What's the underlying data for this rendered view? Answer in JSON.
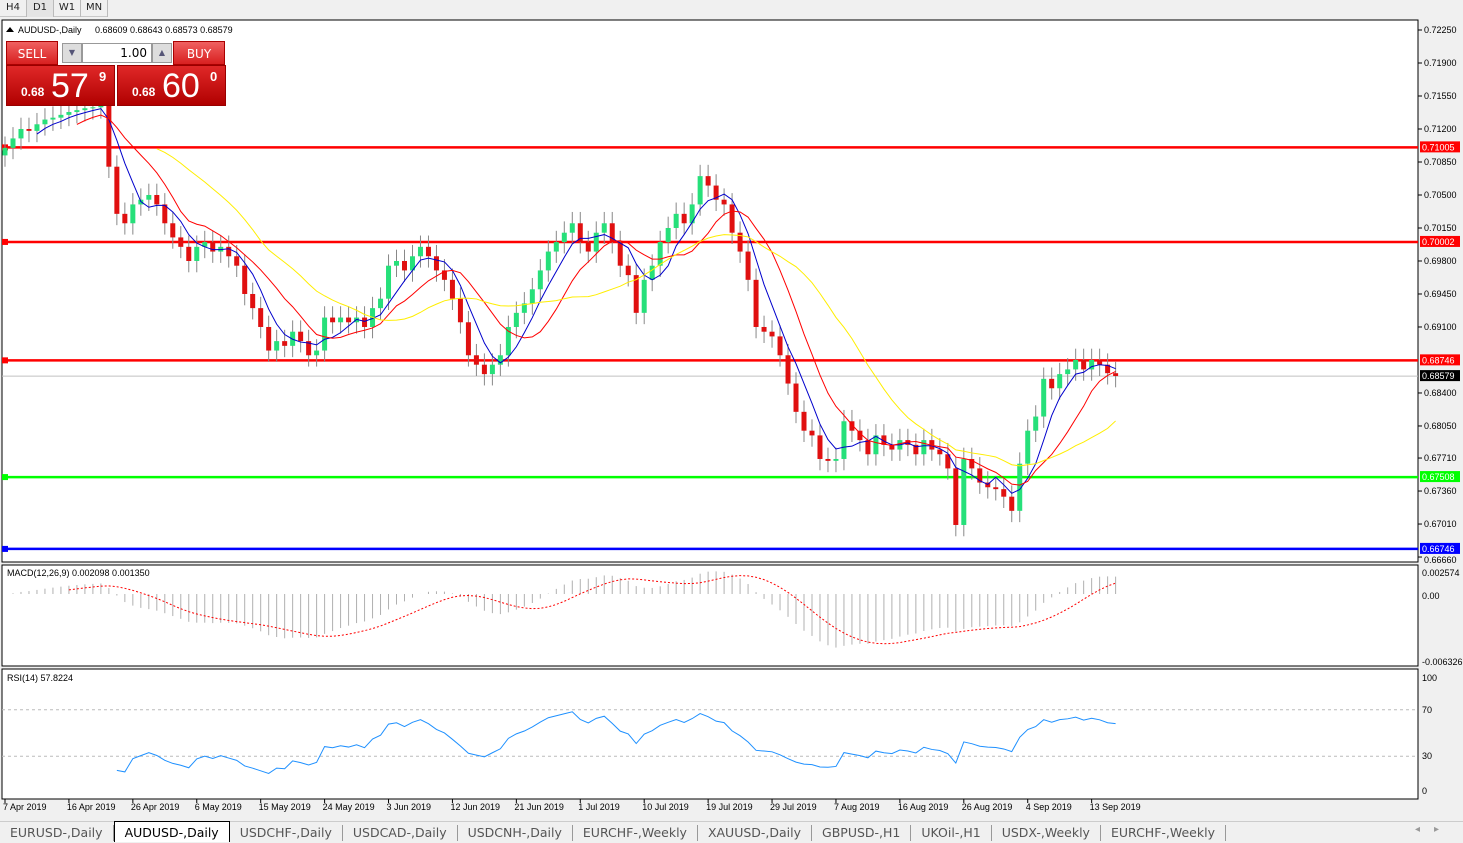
{
  "timeframes": [
    "H4",
    "D1",
    "W1",
    "MN"
  ],
  "active_timeframe": "D1",
  "chart_data": {
    "type": "candlestick",
    "symbol_label": "AUDUSD-,Daily",
    "ohlc_label": "0.68609 0.68643 0.68573 0.68579",
    "ylim": [
      0.6666,
      0.7225
    ],
    "y_ticks": [
      "0.72250",
      "0.71900",
      "0.71550",
      "0.71200",
      "0.70850",
      "0.70500",
      "0.70150",
      "0.69800",
      "0.69450",
      "0.69100",
      "0.68400",
      "0.68050",
      "0.67710",
      "0.67360",
      "0.67010",
      "0.66660"
    ],
    "x_labels": [
      "7 Apr 2019",
      "16 Apr 2019",
      "26 Apr 2019",
      "6 May 2019",
      "15 May 2019",
      "24 May 2019",
      "3 Jun 2019",
      "12 Jun 2019",
      "21 Jun 2019",
      "1 Jul 2019",
      "10 Jul 2019",
      "19 Jul 2019",
      "29 Jul 2019",
      "7 Aug 2019",
      "16 Aug 2019",
      "26 Aug 2019",
      "4 Sep 2019",
      "13 Sep 2019"
    ],
    "closes": [
      0.71,
      0.711,
      0.712,
      0.7118,
      0.7125,
      0.713,
      0.7132,
      0.7135,
      0.7138,
      0.714,
      0.7142,
      0.7143,
      0.7145,
      0.708,
      0.703,
      0.702,
      0.704,
      0.7045,
      0.705,
      0.704,
      0.702,
      0.7005,
      0.6995,
      0.698,
      0.6995,
      0.7,
      0.699,
      0.6995,
      0.6985,
      0.6975,
      0.6945,
      0.693,
      0.691,
      0.6885,
      0.6895,
      0.689,
      0.6905,
      0.6895,
      0.688,
      0.6885,
      0.692,
      0.6915,
      0.692,
      0.6915,
      0.692,
      0.691,
      0.693,
      0.694,
      0.6975,
      0.698,
      0.697,
      0.6985,
      0.6995,
      0.6985,
      0.697,
      0.696,
      0.694,
      0.6915,
      0.688,
      0.687,
      0.686,
      0.687,
      0.688,
      0.691,
      0.6925,
      0.6935,
      0.695,
      0.697,
      0.699,
      0.7,
      0.701,
      0.702,
      0.7,
      0.699,
      0.701,
      0.702,
      0.7,
      0.6975,
      0.6965,
      0.6925,
      0.696,
      0.6975,
      0.7,
      0.7015,
      0.703,
      0.702,
      0.704,
      0.707,
      0.706,
      0.7045,
      0.704,
      0.701,
      0.699,
      0.696,
      0.691,
      0.6905,
      0.69,
      0.688,
      0.685,
      0.682,
      0.68,
      0.6795,
      0.677,
      0.6768,
      0.677,
      0.681,
      0.68,
      0.679,
      0.6775,
      0.6795,
      0.6785,
      0.678,
      0.679,
      0.6785,
      0.6775,
      0.679,
      0.678,
      0.6775,
      0.676,
      0.67,
      0.677,
      0.676,
      0.6745,
      0.674,
      0.6738,
      0.673,
      0.6715,
      0.6765,
      0.68,
      0.6815,
      0.6855,
      0.6845,
      0.686,
      0.6865,
      0.6875,
      0.6865,
      0.6875,
      0.687,
      0.6861,
      0.6858
    ],
    "levels": [
      {
        "value": "0.71005",
        "color": "#ff0000"
      },
      {
        "value": "0.70002",
        "color": "#ff0000"
      },
      {
        "value": "0.68746",
        "color": "#ff0000"
      },
      {
        "value": "0.67508",
        "color": "#00ff00"
      },
      {
        "value": "0.66746",
        "color": "#0000ff"
      }
    ],
    "current_price": "0.68579",
    "bull_color": "#26e07a",
    "bear_color": "#e01010",
    "ma_colors": [
      "#0000cc",
      "#ff0000",
      "#ffee00"
    ],
    "macd": {
      "label": "MACD(12,26,9) 0.002098 0.001350",
      "ticks": [
        "0.002574",
        "0.00",
        "-0.006326"
      ]
    },
    "rsi": {
      "label": "RSI(14) 57.8224",
      "ticks": [
        "100",
        "70",
        "30",
        "0"
      ],
      "color": "#1e90ff"
    }
  },
  "trade": {
    "sell": "SELL",
    "buy": "BUY",
    "lots": "1.00",
    "sell_small": "0.68",
    "sell_big": "57",
    "sell_pip": "9",
    "buy_small": "0.68",
    "buy_big": "60",
    "buy_pip": "0"
  },
  "tabs": [
    "EURUSD-,Daily",
    "AUDUSD-,Daily",
    "USDCHF-,Daily",
    "USDCAD-,Daily",
    "USDCNH-,Daily",
    "EURCHF-,Weekly",
    "XAUUSD-,Daily",
    "GBPUSD-,H1",
    "UKOil-,H1",
    "USDX-,Weekly",
    "EURCHF-,Weekly"
  ],
  "active_tab": 1
}
